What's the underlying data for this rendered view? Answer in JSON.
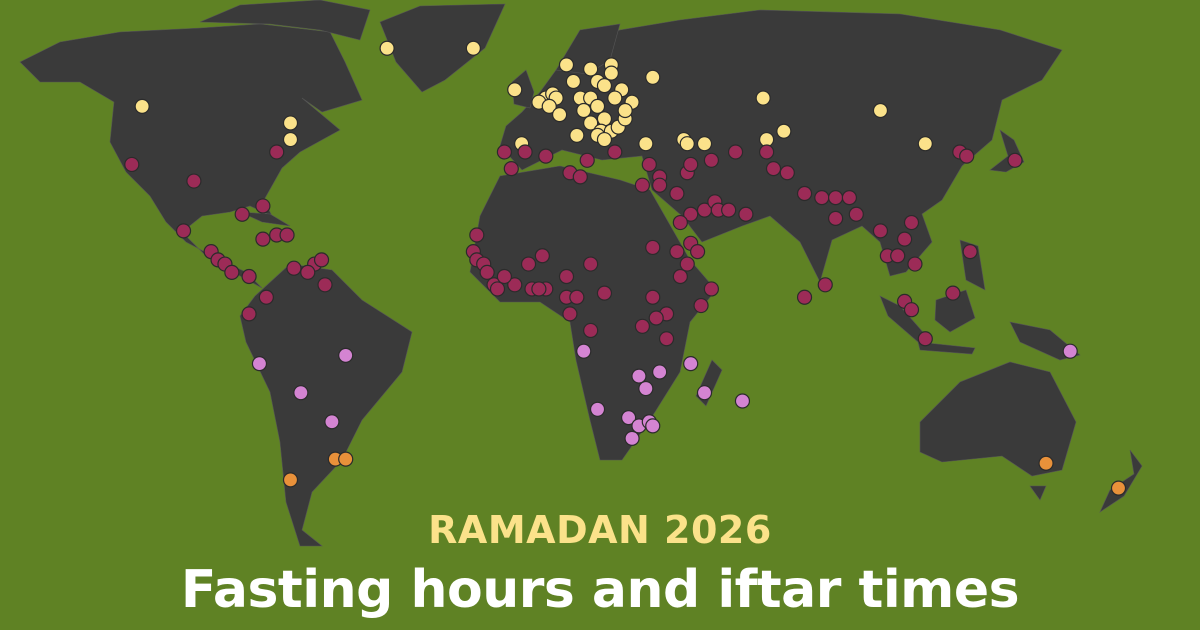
{
  "header": {
    "kicker": "RAMADAN 2026",
    "title": "Fasting hours and iftar times"
  },
  "colors": {
    "background": "#5f8224",
    "land": "#3a3a3a",
    "kicker": "#fbe28a",
    "title": "#ffffff"
  },
  "categories": [
    {
      "key": "yellow",
      "color": "#fbe28a"
    },
    {
      "key": "maroon",
      "color": "#9c2b57"
    },
    {
      "key": "pink",
      "color": "#d484d2"
    },
    {
      "key": "orange",
      "color": "#e9913a"
    }
  ],
  "locations": {
    "yellow": [
      [
        -42,
        65
      ],
      [
        -17,
        65
      ],
      [
        -113,
        51
      ],
      [
        -70,
        47
      ],
      [
        -70,
        43
      ],
      [
        -3,
        42
      ],
      [
        -5,
        55
      ],
      [
        10,
        61
      ],
      [
        17,
        60
      ],
      [
        23,
        61
      ],
      [
        23,
        59
      ],
      [
        35,
        58
      ],
      [
        12,
        57
      ],
      [
        19,
        57
      ],
      [
        4,
        53
      ],
      [
        6,
        54
      ],
      [
        7,
        53
      ],
      [
        2,
        52
      ],
      [
        5,
        51
      ],
      [
        8,
        49
      ],
      [
        14,
        53
      ],
      [
        17,
        53
      ],
      [
        21,
        56
      ],
      [
        26,
        55
      ],
      [
        29,
        52
      ],
      [
        15,
        50
      ],
      [
        19,
        51
      ],
      [
        21,
        48
      ],
      [
        17,
        47
      ],
      [
        20,
        45
      ],
      [
        23,
        45
      ],
      [
        25,
        46
      ],
      [
        27,
        48
      ],
      [
        13,
        44
      ],
      [
        19,
        44
      ],
      [
        21,
        43
      ],
      [
        33,
        42
      ],
      [
        44,
        43
      ],
      [
        45,
        42
      ],
      [
        50,
        42
      ],
      [
        67,
        53
      ],
      [
        101,
        50
      ],
      [
        73,
        45
      ],
      [
        68,
        43
      ],
      [
        114,
        42
      ],
      [
        24,
        53
      ],
      [
        27,
        50
      ]
    ],
    "maroon": [
      [
        -74,
        40
      ],
      [
        -116,
        37
      ],
      [
        -98,
        33
      ],
      [
        -101,
        21
      ],
      [
        -84,
        25
      ],
      [
        -78,
        27
      ],
      [
        -78,
        19
      ],
      [
        -74,
        20
      ],
      [
        -71,
        20
      ],
      [
        -93,
        16
      ],
      [
        -91,
        14
      ],
      [
        -89,
        13
      ],
      [
        -87,
        11
      ],
      [
        -82,
        10
      ],
      [
        -69,
        12
      ],
      [
        -63,
        13
      ],
      [
        -61,
        14
      ],
      [
        -65,
        11
      ],
      [
        -60,
        8
      ],
      [
        -77,
        5
      ],
      [
        -82,
        1
      ],
      [
        -8,
        40
      ],
      [
        -2,
        40
      ],
      [
        4,
        39
      ],
      [
        16,
        38
      ],
      [
        24,
        40
      ],
      [
        -6,
        36
      ],
      [
        11,
        35
      ],
      [
        14,
        34
      ],
      [
        34,
        37
      ],
      [
        37,
        34
      ],
      [
        37,
        32
      ],
      [
        32,
        32
      ],
      [
        45,
        35
      ],
      [
        46,
        37
      ],
      [
        52,
        38
      ],
      [
        59,
        40
      ],
      [
        68,
        40
      ],
      [
        70,
        36
      ],
      [
        74,
        35
      ],
      [
        79,
        30
      ],
      [
        84,
        29
      ],
      [
        88,
        29
      ],
      [
        92,
        29
      ],
      [
        94,
        25
      ],
      [
        88,
        24
      ],
      [
        42,
        30
      ],
      [
        46,
        25
      ],
      [
        50,
        26
      ],
      [
        53,
        28
      ],
      [
        54,
        26
      ],
      [
        57,
        26
      ],
      [
        62,
        25
      ],
      [
        46,
        18
      ],
      [
        48,
        16
      ],
      [
        43,
        23
      ],
      [
        35,
        17
      ],
      [
        42,
        16
      ],
      [
        45,
        13
      ],
      [
        43,
        10
      ],
      [
        -16,
        20
      ],
      [
        -17,
        16
      ],
      [
        -16,
        14
      ],
      [
        -14,
        13
      ],
      [
        -13,
        11
      ],
      [
        -11,
        8
      ],
      [
        -10,
        7
      ],
      [
        -5,
        8
      ],
      [
        -1,
        13
      ],
      [
        3,
        15
      ],
      [
        0,
        7
      ],
      [
        4,
        7
      ],
      [
        10,
        10
      ],
      [
        17,
        13
      ],
      [
        -8,
        10
      ],
      [
        2,
        7
      ],
      [
        10,
        5
      ],
      [
        13,
        5
      ],
      [
        21,
        6
      ],
      [
        11,
        1
      ],
      [
        17,
        -3
      ],
      [
        35,
        5
      ],
      [
        39,
        1
      ],
      [
        36,
        0
      ],
      [
        32,
        -2
      ],
      [
        39,
        -5
      ],
      [
        49,
        3
      ],
      [
        110,
        23
      ],
      [
        108,
        19
      ],
      [
        101,
        21
      ],
      [
        103,
        15
      ],
      [
        106,
        15
      ],
      [
        111,
        13
      ],
      [
        127,
        16
      ],
      [
        122,
        6
      ],
      [
        108,
        4
      ],
      [
        110,
        2
      ],
      [
        114,
        -5
      ],
      [
        79,
        5
      ],
      [
        85,
        8
      ],
      [
        140,
        38
      ],
      [
        124,
        40
      ],
      [
        126,
        39
      ],
      [
        52,
        7
      ]
    ],
    "pink": [
      [
        -54,
        -9
      ],
      [
        -79,
        -11
      ],
      [
        -67,
        -18
      ],
      [
        -58,
        -25
      ],
      [
        15,
        -8
      ],
      [
        19,
        -22
      ],
      [
        31,
        -14
      ],
      [
        37,
        -13
      ],
      [
        33,
        -17
      ],
      [
        46,
        -11
      ],
      [
        50,
        -18
      ],
      [
        61,
        -20
      ],
      [
        28,
        -24
      ],
      [
        31,
        -26
      ],
      [
        34,
        -25
      ],
      [
        35,
        -26
      ],
      [
        29,
        -29
      ],
      [
        156,
        -8
      ]
    ],
    "orange": [
      [
        -70,
        -39
      ],
      [
        -57,
        -34
      ],
      [
        -54,
        -34
      ],
      [
        149,
        -35
      ],
      [
        170,
        -41
      ]
    ]
  }
}
